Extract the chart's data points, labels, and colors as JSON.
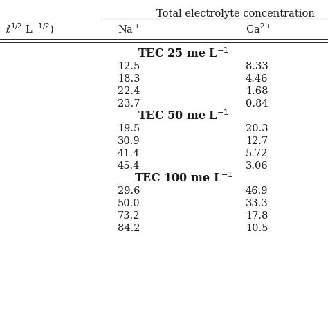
{
  "title": "Total electrolyte concentration",
  "left_label": "$\\ell^{1/2}$ L$^{-1/2}$)",
  "col_na": "Na$^+$",
  "col_ca": "Ca$^{2+}$",
  "sections": [
    {
      "header": "TEC 25 me L$^{-1}$",
      "rows": [
        [
          "12.5",
          "8.33"
        ],
        [
          "18.3",
          "4.46"
        ],
        [
          "22.4",
          "1.68"
        ],
        [
          "23.7",
          "0.84"
        ]
      ]
    },
    {
      "header": "TEC 50 me L$^{-1}$",
      "rows": [
        [
          "19.5",
          "20.3"
        ],
        [
          "30.9",
          "12.7"
        ],
        [
          "41.4",
          "5.72"
        ],
        [
          "45.4",
          "3.06"
        ]
      ]
    },
    {
      "header": "TEC 100 me L$^{-1}$",
      "rows": [
        [
          "29.6",
          "46.9"
        ],
        [
          "50.0",
          "33.3"
        ],
        [
          "73.2",
          "17.8"
        ],
        [
          "84.2",
          "10.5"
        ]
      ]
    }
  ],
  "bg_color": "#ffffff",
  "text_color": "#1a1a1a",
  "font_size_data": 10.5,
  "font_size_header": 10.5,
  "font_size_section": 11.5,
  "font_size_title": 10.5
}
